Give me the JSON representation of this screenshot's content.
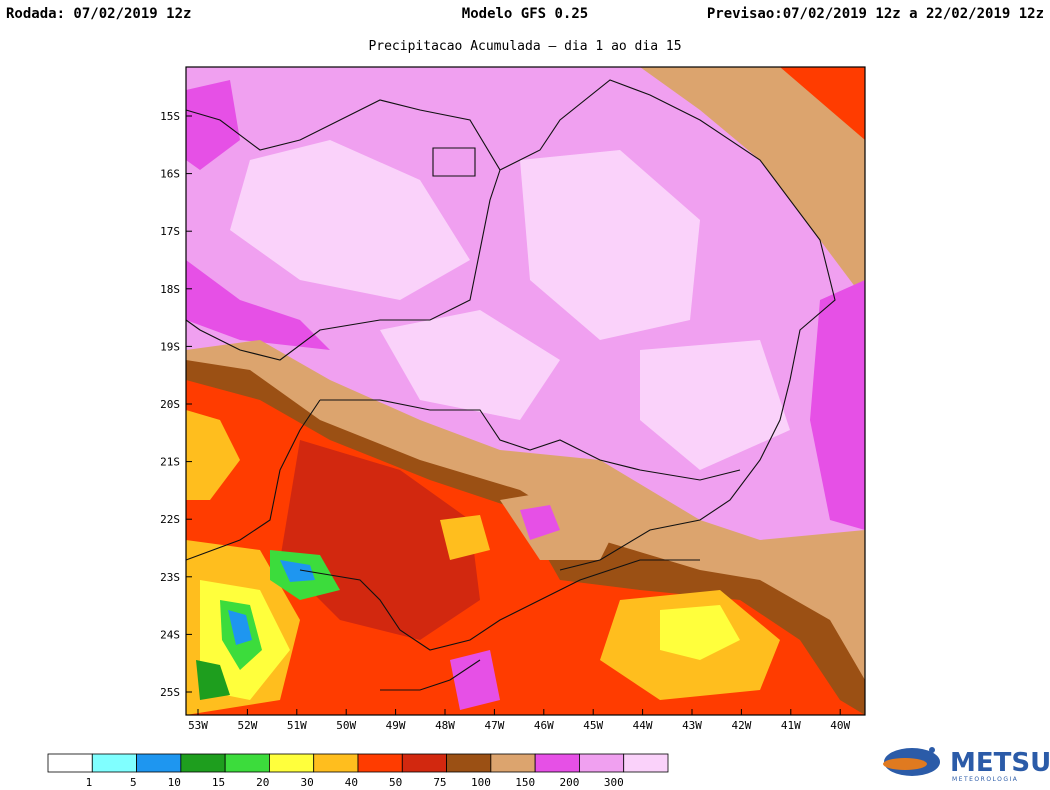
{
  "header": {
    "left": "Rodada: 07/02/2019 12z",
    "center": "Modelo GFS 0.25",
    "right": "Previsao:07/02/2019 12z a 22/02/2019 12z"
  },
  "subtitle": "Precipitacao Acumulada — dia 1 ao dia 15",
  "lat_labels": [
    "15S",
    "16S",
    "17S",
    "18S",
    "19S",
    "20S",
    "21S",
    "22S",
    "23S",
    "24S",
    "25S"
  ],
  "lon_labels": [
    "53W",
    "52W",
    "51W",
    "50W",
    "49W",
    "48W",
    "47W",
    "46W",
    "45W",
    "44W",
    "43W",
    "42W",
    "41W",
    "40W"
  ],
  "colorbar": {
    "colors": [
      "#ffffff",
      "#80ffff",
      "#1e96f0",
      "#1e9e1e",
      "#3cdc3c",
      "#ffff3c",
      "#ffbe1e",
      "#ff3c00",
      "#d2280f",
      "#9b5014",
      "#dca46e",
      "#e650e6",
      "#f0a0f0",
      "#fad2fa"
    ],
    "labels": [
      "1",
      "5",
      "10",
      "15",
      "20",
      "30",
      "40",
      "50",
      "75",
      "100",
      "150",
      "200",
      "300"
    ]
  },
  "logo": {
    "name": "METSUL",
    "tagline": "METEOROLOGIA"
  }
}
